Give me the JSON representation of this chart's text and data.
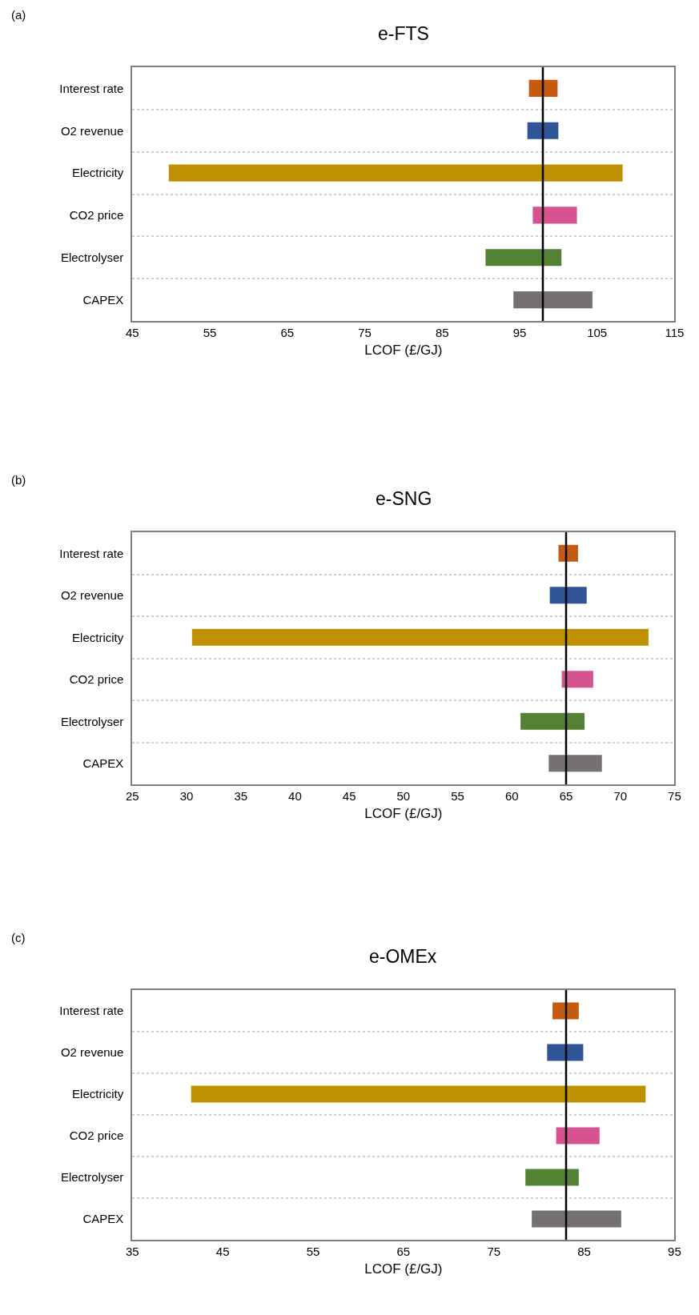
{
  "chart_data": [
    {
      "type": "bar",
      "orientation": "horizontal",
      "title": "e-FTS",
      "xlabel": "LCOF (£/GJ)",
      "annotations": [
        "(a)"
      ],
      "categories": [
        "Interest rate",
        "O2 revenue",
        "Electricity",
        "CO2 price",
        "Electrolyser",
        "CAPEX"
      ],
      "base": [
        96.2,
        96.0,
        49.7,
        96.7,
        90.6,
        94.2
      ],
      "values": [
        3.7,
        4.0,
        58.6,
        5.7,
        9.8,
        10.2
      ],
      "colors": [
        "#c55a11",
        "#2f5597",
        "#bf9000",
        "#d45390",
        "#548235",
        "#767171"
      ],
      "xlim": [
        45,
        115
      ],
      "xticks": [
        45,
        55,
        65,
        75,
        85,
        95,
        105,
        115
      ],
      "ref_lines": [
        {
          "axis": "x",
          "value": 98,
          "color": "#000000"
        }
      ],
      "grid": "y"
    },
    {
      "type": "bar",
      "orientation": "horizontal",
      "title": "e-SNG",
      "xlabel": "LCOF (£/GJ)",
      "annotations": [
        "(b)"
      ],
      "categories": [
        "Interest rate",
        "O2 revenue",
        "Electricity",
        "CO2 price",
        "Electrolyser",
        "CAPEX"
      ],
      "base": [
        64.3,
        63.5,
        30.5,
        64.6,
        60.8,
        63.4
      ],
      "values": [
        1.8,
        3.4,
        42.1,
        2.9,
        5.9,
        4.9
      ],
      "colors": [
        "#c55a11",
        "#2f5597",
        "#bf9000",
        "#d45390",
        "#548235",
        "#767171"
      ],
      "xlim": [
        25,
        75
      ],
      "xticks": [
        25,
        30,
        35,
        40,
        45,
        50,
        55,
        60,
        65,
        70,
        75
      ],
      "ref_lines": [
        {
          "axis": "x",
          "value": 65,
          "color": "#000000"
        }
      ],
      "grid": "y"
    },
    {
      "type": "bar",
      "orientation": "horizontal",
      "title": "e-OMEx",
      "xlabel": "LCOF (£/GJ)",
      "annotations": [
        "(c)"
      ],
      "categories": [
        "Interest rate",
        "O2 revenue",
        "Electricity",
        "CO2 price",
        "Electrolyser",
        "CAPEX"
      ],
      "base": [
        81.5,
        80.9,
        41.5,
        81.9,
        78.5,
        79.2
      ],
      "values": [
        2.9,
        4.0,
        50.3,
        4.8,
        5.9,
        9.9
      ],
      "colors": [
        "#c55a11",
        "#2f5597",
        "#bf9000",
        "#d45390",
        "#548235",
        "#767171"
      ],
      "xlim": [
        35,
        95
      ],
      "xticks": [
        35,
        45,
        55,
        65,
        75,
        85,
        95
      ],
      "ref_lines": [
        {
          "axis": "x",
          "value": 83,
          "color": "#000000"
        }
      ],
      "grid": "y"
    }
  ]
}
